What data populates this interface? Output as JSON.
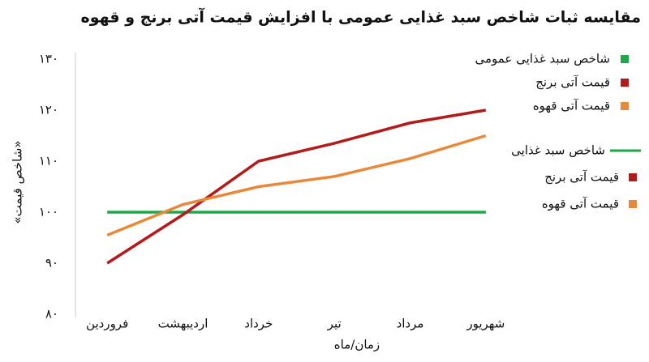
{
  "chart_data": {
    "type": "line",
    "title": "مقایسه ثبات شاخص سبد غذایی عمومی با افزایش قیمت آتی برنج و قهوه",
    "x_label": "زمان/ماه",
    "y_label": "«شاخص قیمت»",
    "categories": [
      "فروردین",
      "اردیبهشت",
      "خرداد",
      "تیر",
      "مرداد",
      "شهریور"
    ],
    "series": [
      {
        "name": "شاخص سبد غذایی",
        "color": "#1fa74a",
        "values": [
          100,
          100,
          100,
          100,
          100,
          100
        ]
      },
      {
        "name": "قیمت آتی برنج",
        "color": "#b31b1b",
        "values": [
          90,
          99.5,
          110,
          113.5,
          117.5,
          120
        ]
      },
      {
        "name": "قیمت آتی قهوه",
        "color": "#e8893a",
        "values": [
          95.5,
          101.5,
          105,
          107,
          110.5,
          115
        ]
      }
    ],
    "legend_top": [
      "شاخص سبد غذایی عمومی",
      "قیمت آتی برنج",
      "قیمت آتی قهوه"
    ],
    "ylim": [
      80,
      130
    ],
    "yticks": [
      {
        "value": 80,
        "label": "۸۰"
      },
      {
        "value": 90,
        "label": "۹۰"
      },
      {
        "value": 100,
        "label": "۱۰۰"
      },
      {
        "value": 110,
        "label": "۱۱۰"
      },
      {
        "value": 120,
        "label": "۱۲۰"
      },
      {
        "value": 130,
        "label": "۱۳۰"
      }
    ],
    "grid": false
  }
}
